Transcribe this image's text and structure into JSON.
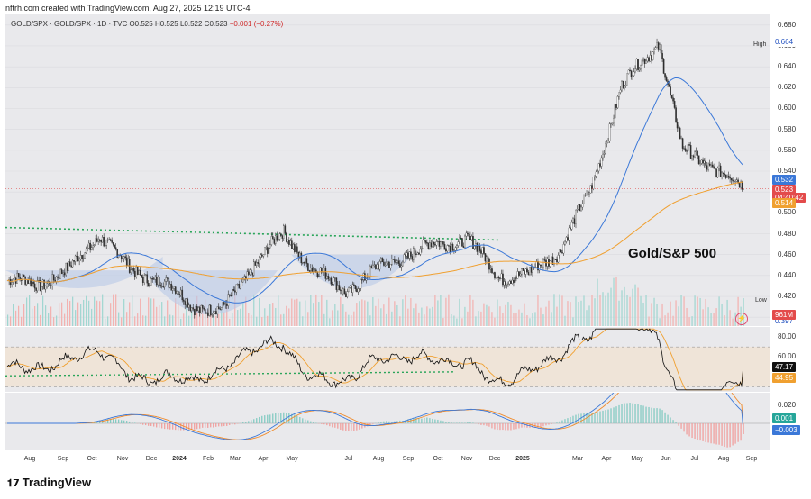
{
  "credit": "nftrh.com created with TradingView.com, Aug 27, 2025 12:19 UTC-4",
  "legend": {
    "symbol": "GOLD/SPX · GOLD/SPX · 1D · TVC",
    "o": "O0.525",
    "h": "H0.525",
    "l": "L0.522",
    "c": "C0.523",
    "change": "−0.001 (−0.27%)"
  },
  "annotation": "Gold/S&P 500",
  "high_label": "High",
  "high_value": "0.664",
  "low_label": "Low",
  "low_value": "0.397",
  "price_axis": [
    "0.680",
    "0.660",
    "0.640",
    "0.620",
    "0.600",
    "0.580",
    "0.560",
    "0.540",
    "0.520",
    "0.500",
    "0.480",
    "0.460",
    "0.440",
    "0.420",
    "0.400"
  ],
  "tags": {
    "sma_fast": "0.532",
    "last": "0.523",
    "countdown": "04:40:42",
    "sma_slow": "0.514",
    "volume": "961M",
    "rsi": "47.17",
    "rsi_ma": "44.95",
    "macd_signal": "0.001",
    "macd": "−0.003"
  },
  "rsi_axis": [
    "80.00",
    "60.00",
    "40.00"
  ],
  "macd_axis": [
    "0.020"
  ],
  "x_axis": [
    "Aug",
    "Sep",
    "Oct",
    "Nov",
    "Dec",
    "2024",
    "Feb",
    "Mar",
    "Apr",
    "May",
    "Jul",
    "Aug",
    "Sep",
    "Oct",
    "Nov",
    "Dec",
    "2025",
    "Mar",
    "Apr",
    "May",
    "Jun",
    "Jul",
    "Aug",
    "Sep"
  ],
  "footer": "TradingView",
  "colors": {
    "up": "#26a69a",
    "down": "#ef5350",
    "sma_fast": "#3b78d8",
    "sma_slow": "#f0a030",
    "trend": "#2aa55a",
    "rsi_line": "#111111",
    "macd": "#3b78d8",
    "signal": "#f08a2a"
  },
  "chart_data": {
    "type": "line",
    "title": "GOLD/SPX",
    "series": [
      {
        "name": "GOLD/SPX",
        "x": [
          "2023-08",
          "2023-09",
          "2023-10",
          "2023-11",
          "2023-12",
          "2024-01",
          "2024-02",
          "2024-03",
          "2024-04",
          "2024-05",
          "2024-06",
          "2024-07",
          "2024-08",
          "2024-09",
          "2024-10",
          "2024-11",
          "2024-12",
          "2025-01",
          "2025-02",
          "2025-03",
          "2025-04",
          "2025-05",
          "2025-06",
          "2025-07",
          "2025-08"
        ],
        "values": [
          0.435,
          0.432,
          0.445,
          0.48,
          0.445,
          0.435,
          0.412,
          0.405,
          0.45,
          0.48,
          0.445,
          0.425,
          0.445,
          0.46,
          0.47,
          0.475,
          0.44,
          0.44,
          0.465,
          0.52,
          0.62,
          0.655,
          0.56,
          0.545,
          0.523
        ]
      }
    ],
    "ylim": [
      0.397,
      0.685
    ],
    "high": 0.664,
    "low": 0.397,
    "last": 0.523,
    "sma_fast_last": 0.532,
    "sma_slow_last": 0.514,
    "rsi_last": 47.17,
    "rsi_ma_last": 44.95,
    "macd_last": -0.003,
    "signal_last": 0.001
  }
}
